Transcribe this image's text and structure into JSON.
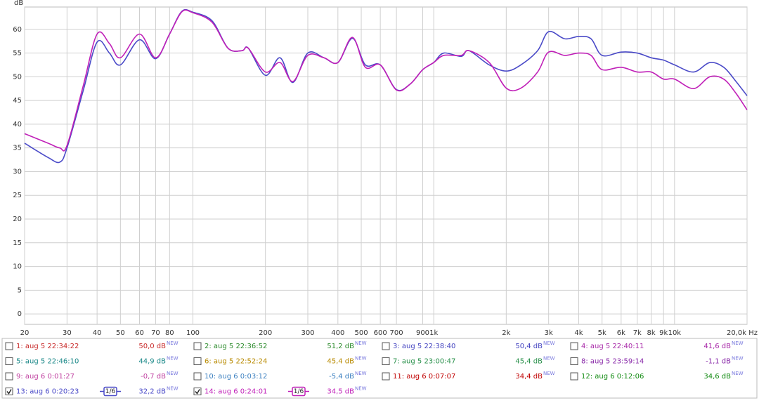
{
  "chart_data": {
    "type": "line",
    "y_label": "dB",
    "log_x": true,
    "grid": true,
    "xlim": [
      20,
      20000
    ],
    "ylim": [
      -2.2,
      64.7
    ],
    "xticks": [
      20,
      30,
      40,
      50,
      60,
      70,
      80,
      100,
      200,
      300,
      400,
      500,
      600,
      700,
      900,
      {
        "value": 1000,
        "label": "1k"
      },
      {
        "value": 2000,
        "label": "2k"
      },
      {
        "value": 3000,
        "label": "3k"
      },
      {
        "value": 4000,
        "label": "4k"
      },
      {
        "value": 5000,
        "label": "5k"
      },
      {
        "value": 6000,
        "label": "6k"
      },
      {
        "value": 7000,
        "label": "7k"
      },
      {
        "value": 8000,
        "label": "8k"
      },
      {
        "value": 9000,
        "label": "9k"
      },
      {
        "value": 10000,
        "label": "10k"
      },
      {
        "value": 20000,
        "label": "20,0k Hz"
      }
    ],
    "yticks": [
      0,
      5,
      10,
      15,
      20,
      25,
      30,
      35,
      40,
      45,
      50,
      55,
      60
    ],
    "x": [
      20,
      25,
      28,
      30,
      35,
      40,
      45,
      50,
      60,
      70,
      80,
      90,
      100,
      120,
      140,
      160,
      170,
      200,
      230,
      260,
      300,
      350,
      400,
      460,
      520,
      600,
      700,
      800,
      900,
      1000,
      1100,
      1300,
      1400,
      1700,
      2000,
      2300,
      2700,
      3000,
      3500,
      4000,
      4500,
      5000,
      6000,
      7000,
      8000,
      9000,
      10000,
      12000,
      14000,
      16000,
      18000,
      20000
    ],
    "series": [
      {
        "name": "13: aug 6 0:20:23",
        "color": "#4b4bc8",
        "reading": "32,2 dB",
        "badge": "NEW",
        "smoothing": "1/6",
        "checked": true,
        "values": [
          36,
          33,
          32,
          35,
          47,
          57.3,
          55,
          52.5,
          57.8,
          53.8,
          59,
          63.8,
          63.6,
          61.8,
          56,
          55.5,
          56,
          50.3,
          54,
          48.8,
          55,
          54,
          53,
          58.1,
          52.5,
          52.5,
          47.3,
          48.5,
          51.5,
          53,
          55,
          54.3,
          55.5,
          52.5,
          51.2,
          52.5,
          55.5,
          59.5,
          58,
          58.5,
          58,
          54.5,
          55.2,
          55,
          54,
          53.5,
          52.5,
          51,
          53,
          52,
          49,
          46
        ]
      },
      {
        "name": "14: aug 6 0:24:01",
        "color": "#c020b8",
        "reading": "34,5 dB",
        "badge": "NEW",
        "smoothing": "1/6",
        "checked": true,
        "values": [
          38,
          36,
          35,
          35.5,
          48,
          59,
          57,
          54,
          59,
          54,
          59,
          63.7,
          63.5,
          61.5,
          56,
          55.5,
          56,
          51,
          53,
          49,
          54.5,
          54,
          53,
          58.3,
          52,
          52.5,
          47.2,
          48.5,
          51.5,
          53,
          54.5,
          54.5,
          55.5,
          53,
          47.6,
          47.6,
          51,
          55.2,
          54.5,
          55,
          54.5,
          51.5,
          52,
          51,
          51,
          49.5,
          49.5,
          47.5,
          50,
          49.5,
          46.5,
          43
        ]
      }
    ]
  },
  "measurements": [
    {
      "label": "1: aug 5 22:34:22",
      "reading": "50,0 dB",
      "badge": "NEW",
      "color": "#c82828",
      "checked": false
    },
    {
      "label": "2: aug 5 22:36:52",
      "reading": "51,2 dB",
      "badge": "NEW",
      "color": "#2a8a2a",
      "checked": false
    },
    {
      "label": "3: aug 5 22:38:40",
      "reading": "50,4 dB",
      "badge": "NEW",
      "color": "#4444c0",
      "checked": false
    },
    {
      "label": "4: aug 5 22:40:11",
      "reading": "41,6 dB",
      "badge": "NEW",
      "color": "#a828a8",
      "checked": false
    },
    {
      "label": "5: aug 5 22:46:10",
      "reading": "44,9 dB",
      "badge": "NEW",
      "color": "#1a8888",
      "checked": false
    },
    {
      "label": "6: aug 5 22:52:24",
      "reading": "45,4 dB",
      "badge": "NEW",
      "color": "#b88a00",
      "checked": false
    },
    {
      "label": "7: aug 5 23:00:47",
      "reading": "45,4 dB",
      "badge": "NEW",
      "color": "#28904a",
      "checked": false
    },
    {
      "label": "8: aug 5 23:59:14",
      "reading": "-1,1 dB",
      "badge": "NEW",
      "color": "#8828a8",
      "checked": false
    },
    {
      "label": "9: aug 6 0:01:27",
      "reading": "-0,7 dB",
      "badge": "NEW",
      "color": "#c040a0",
      "checked": false
    },
    {
      "label": "10: aug 6 0:03:12",
      "reading": "-5,4 dB",
      "badge": "NEW",
      "color": "#3c80c0",
      "checked": false
    },
    {
      "label": "11: aug 6 0:07:07",
      "reading": "34,4 dB",
      "badge": "NEW",
      "color": "#c00000",
      "checked": false
    },
    {
      "label": "12: aug 6 0:12:06",
      "reading": "34,6 dB",
      "badge": "NEW",
      "color": "#108a10",
      "checked": false
    }
  ]
}
